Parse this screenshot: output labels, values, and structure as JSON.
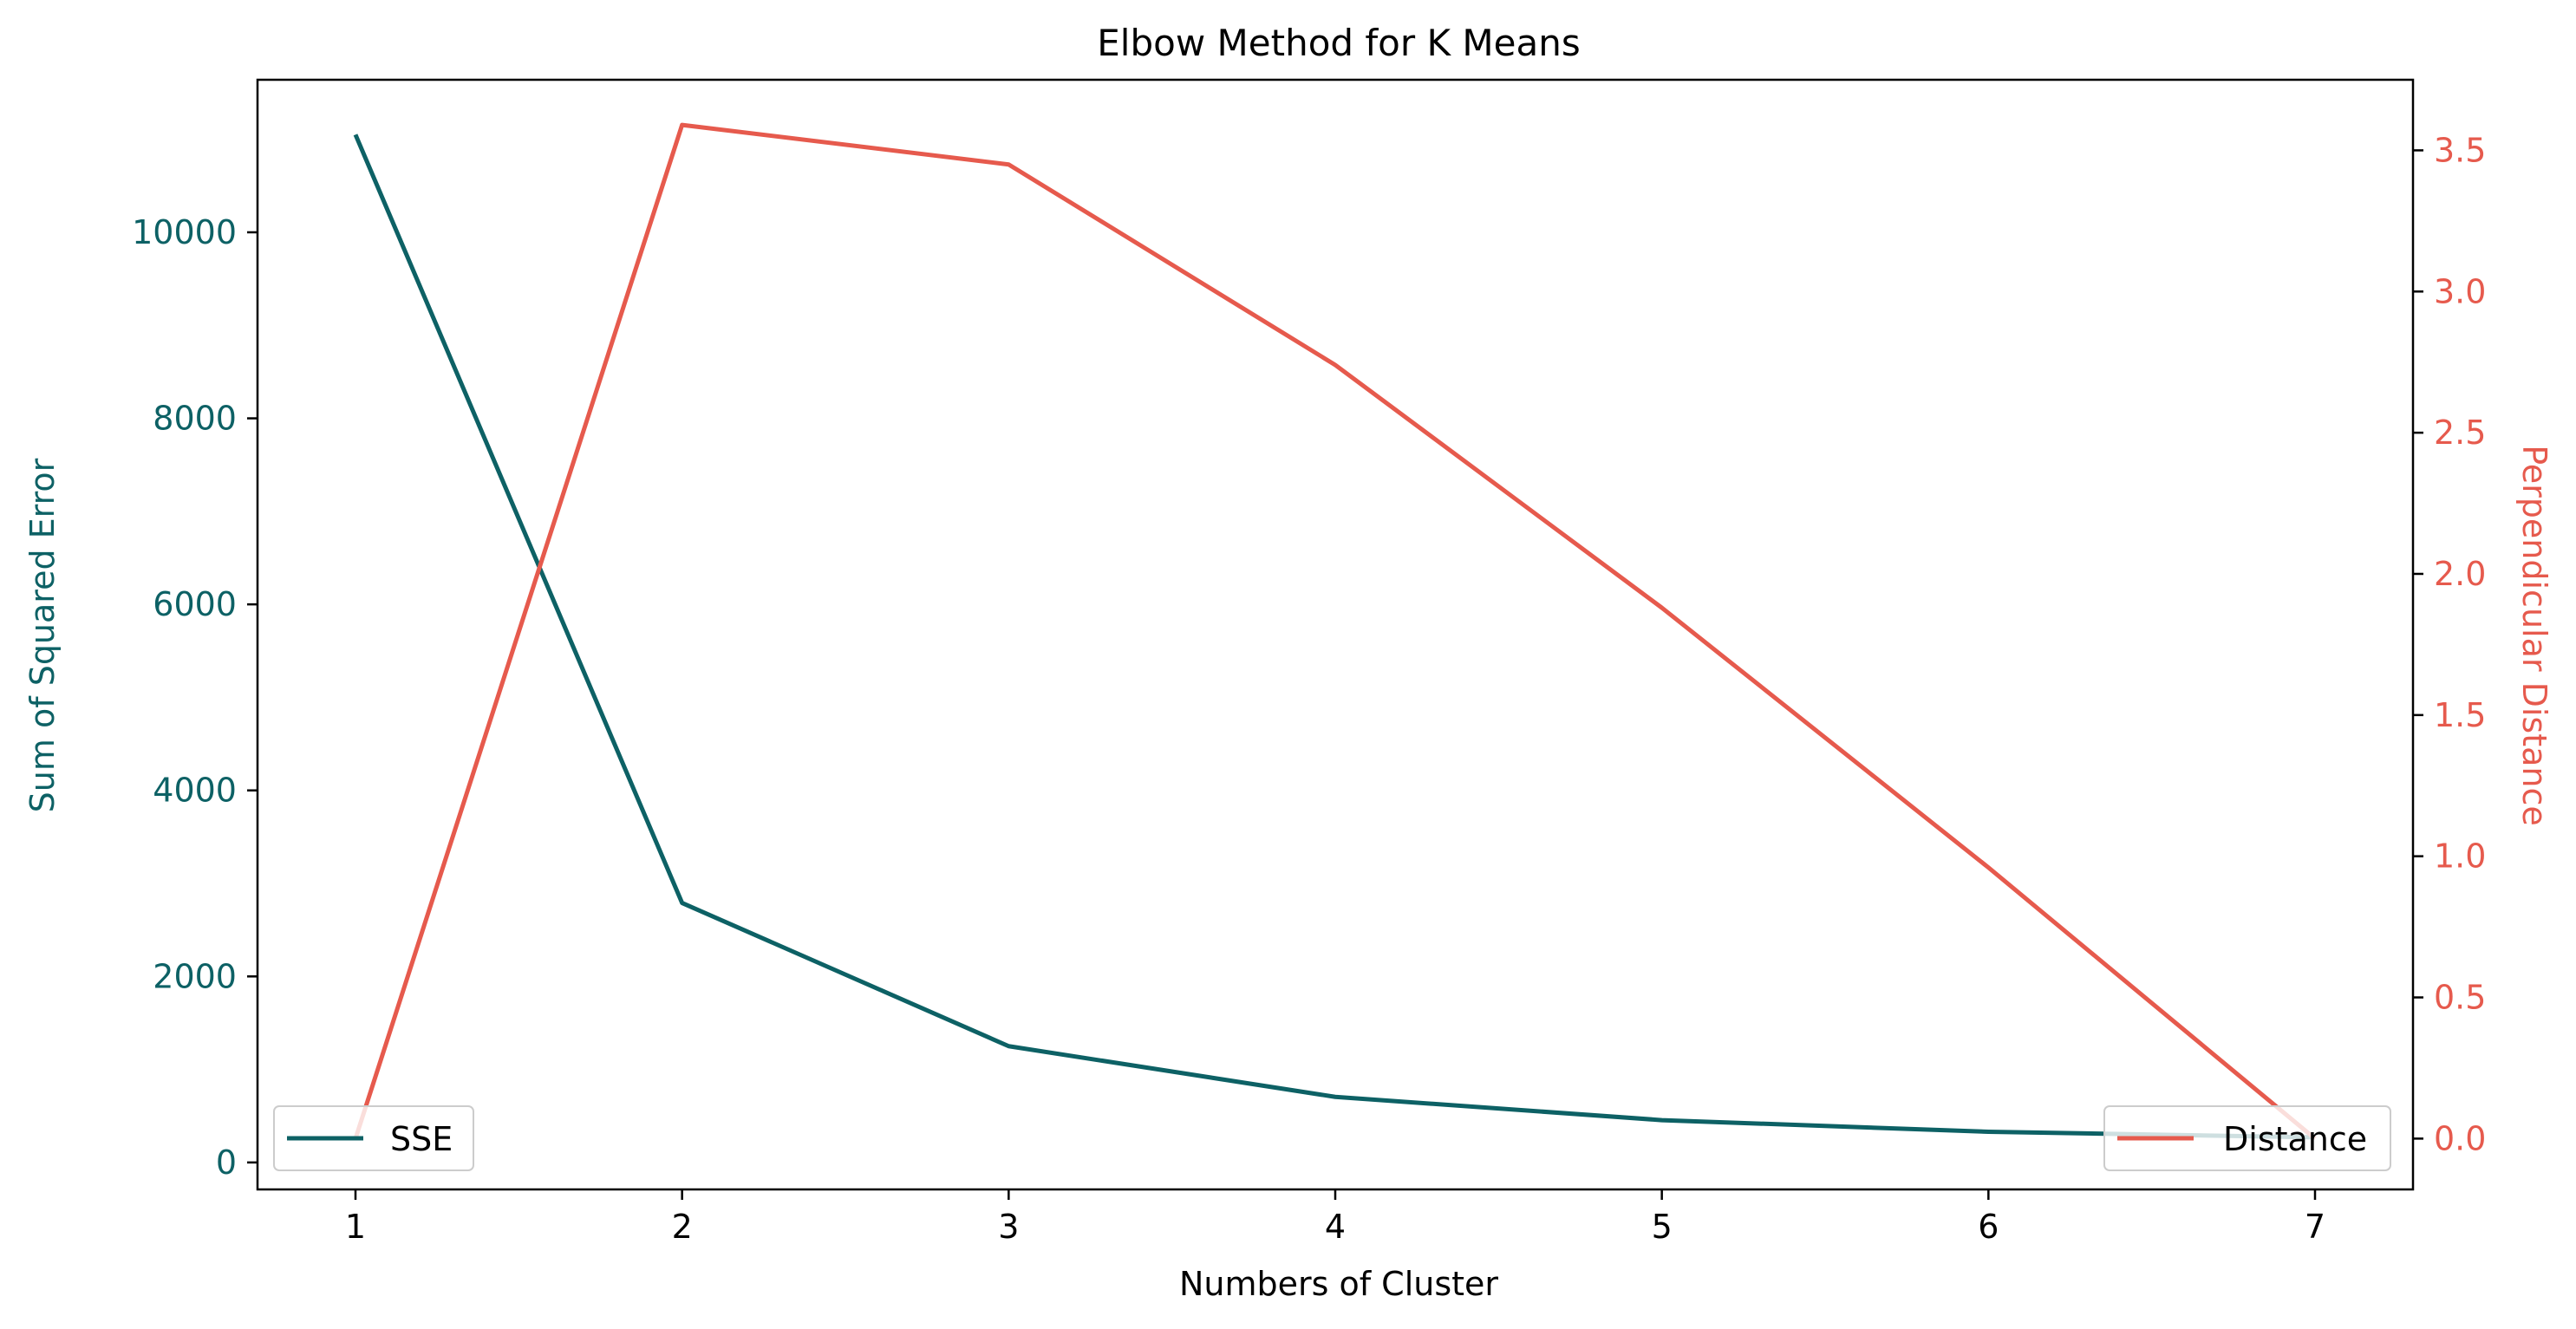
{
  "chart_data": {
    "type": "line",
    "title": "Elbow Method for K Means",
    "xlabel": "Numbers of Cluster",
    "ylabel_left": "Sum of Squared Error",
    "ylabel_right": "Perpendicular Distance",
    "x": [
      1,
      2,
      3,
      4,
      5,
      6,
      7
    ],
    "xlim": [
      0.7,
      7.3
    ],
    "x_ticks": [
      1,
      2,
      3,
      4,
      5,
      6,
      7
    ],
    "ylim_left": [
      -290,
      11640
    ],
    "ylim_right": [
      -0.18,
      3.75
    ],
    "y_ticks_left": [
      0,
      2000,
      4000,
      6000,
      8000,
      10000
    ],
    "y_ticks_right": [
      "0.0",
      "0.5",
      "1.0",
      "1.5",
      "2.0",
      "2.5",
      "3.0",
      "3.5"
    ],
    "grid": false,
    "series": [
      {
        "name": "SSE",
        "axis": "left",
        "color": "#0d6165",
        "values": [
          11050,
          2790,
          1250,
          705,
          455,
          330,
          270
        ],
        "legend_position": "lower-left"
      },
      {
        "name": "Distance",
        "axis": "right",
        "color": "#e65a4d",
        "values": [
          0.0,
          3.59,
          3.45,
          2.74,
          1.88,
          0.96,
          0.0
        ],
        "legend_position": "lower-right"
      }
    ],
    "axis_colors": {
      "left": "#0d6165",
      "right": "#e65a4d",
      "x": "#000000"
    }
  }
}
